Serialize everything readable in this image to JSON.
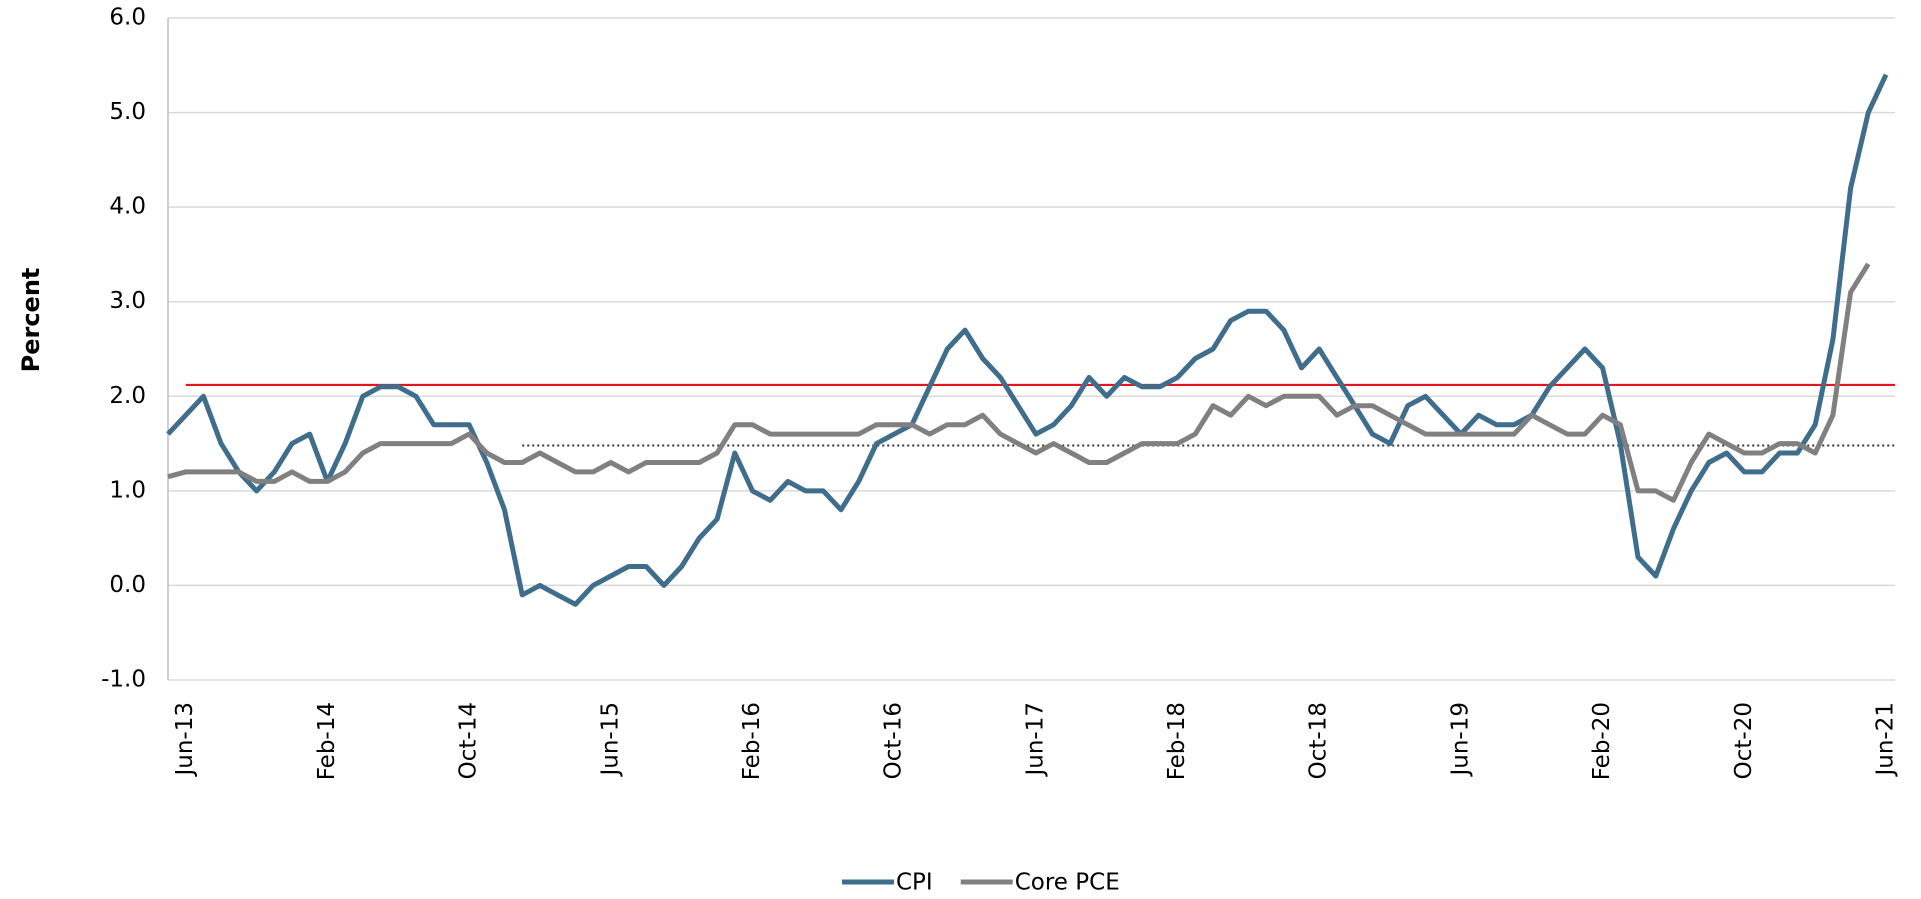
{
  "chart_data": {
    "type": "line",
    "y_label": "Percent",
    "categories": [
      null,
      "Jun-13",
      null,
      null,
      null,
      null,
      null,
      null,
      null,
      "Feb-14",
      null,
      null,
      null,
      null,
      null,
      null,
      null,
      "Oct-14",
      null,
      null,
      null,
      null,
      null,
      null,
      null,
      "Jun-15",
      null,
      null,
      null,
      null,
      null,
      null,
      null,
      "Feb-16",
      null,
      null,
      null,
      null,
      null,
      null,
      null,
      "Oct-16",
      null,
      null,
      null,
      null,
      null,
      null,
      null,
      "Jun-17",
      null,
      null,
      null,
      null,
      null,
      null,
      null,
      "Feb-18",
      null,
      null,
      null,
      null,
      null,
      null,
      null,
      "Oct-18",
      null,
      null,
      null,
      null,
      null,
      null,
      null,
      "Jun-19",
      null,
      null,
      null,
      null,
      null,
      null,
      null,
      "Feb-20",
      null,
      null,
      null,
      null,
      null,
      null,
      null,
      "Oct-20",
      null,
      null,
      null,
      null,
      null,
      null,
      null,
      "Jun-21"
    ],
    "series": [
      {
        "name": "CPI",
        "color": "#3f6d8c",
        "values": [
          1.6,
          1.8,
          2.0,
          1.5,
          1.2,
          1.0,
          1.2,
          1.5,
          1.6,
          1.1,
          1.5,
          2.0,
          2.1,
          2.1,
          2.0,
          1.7,
          1.7,
          1.7,
          1.3,
          0.8,
          -0.1,
          0.0,
          -0.1,
          -0.2,
          0.0,
          0.1,
          0.2,
          0.2,
          0.0,
          0.2,
          0.5,
          0.7,
          1.4,
          1.0,
          0.9,
          1.1,
          1.0,
          1.0,
          0.8,
          1.1,
          1.5,
          1.6,
          1.7,
          2.1,
          2.5,
          2.7,
          2.4,
          2.2,
          1.9,
          1.6,
          1.7,
          1.9,
          2.2,
          2.0,
          2.2,
          2.1,
          2.1,
          2.2,
          2.4,
          2.5,
          2.8,
          2.9,
          2.9,
          2.7,
          2.3,
          2.5,
          2.2,
          1.9,
          1.6,
          1.5,
          1.9,
          2.0,
          1.8,
          1.6,
          1.8,
          1.7,
          1.7,
          1.8,
          2.1,
          2.3,
          2.5,
          2.3,
          1.5,
          0.3,
          0.1,
          0.6,
          1.0,
          1.3,
          1.4,
          1.2,
          1.2,
          1.4,
          1.4,
          1.7,
          2.6,
          4.2,
          5.0,
          5.4
        ]
      },
      {
        "name": "Core PCE",
        "color": "#808080",
        "values": [
          1.15,
          1.2,
          1.2,
          1.2,
          1.2,
          1.1,
          1.1,
          1.2,
          1.1,
          1.1,
          1.2,
          1.4,
          1.5,
          1.5,
          1.5,
          1.5,
          1.5,
          1.6,
          1.4,
          1.3,
          1.3,
          1.4,
          1.3,
          1.2,
          1.2,
          1.3,
          1.2,
          1.3,
          1.3,
          1.3,
          1.3,
          1.4,
          1.7,
          1.7,
          1.6,
          1.6,
          1.6,
          1.6,
          1.6,
          1.6,
          1.7,
          1.7,
          1.7,
          1.6,
          1.7,
          1.7,
          1.8,
          1.6,
          1.5,
          1.4,
          1.5,
          1.4,
          1.3,
          1.3,
          1.4,
          1.5,
          1.5,
          1.5,
          1.6,
          1.9,
          1.8,
          2.0,
          1.9,
          2.0,
          2.0,
          2.0,
          1.8,
          1.9,
          1.9,
          1.8,
          1.7,
          1.6,
          1.6,
          1.6,
          1.6,
          1.6,
          1.6,
          1.8,
          1.7,
          1.6,
          1.6,
          1.8,
          1.7,
          1.0,
          1.0,
          0.9,
          1.3,
          1.6,
          1.5,
          1.4,
          1.4,
          1.5,
          1.5,
          1.4,
          1.8,
          3.1,
          3.4,
          null
        ]
      }
    ],
    "hlines": [
      {
        "value": 2.12,
        "color": "#e8141c",
        "style": "solid",
        "x_start": 1
      },
      {
        "value": 1.48,
        "color": "#333333",
        "style": "dotted",
        "x_start": 20
      }
    ],
    "ylim": [
      -1.0,
      6.0
    ],
    "yticks": [
      {
        "value": -1,
        "label": "-1.0"
      },
      {
        "value": 0,
        "label": "0.0"
      },
      {
        "value": 1,
        "label": "1.0"
      },
      {
        "value": 2,
        "label": "2.0"
      },
      {
        "value": 3,
        "label": "3.0"
      },
      {
        "value": 4,
        "label": "4.0"
      },
      {
        "value": 5,
        "label": "5.0"
      },
      {
        "value": 6,
        "label": "6.0"
      }
    ],
    "grid": true,
    "legend": "bottom"
  }
}
